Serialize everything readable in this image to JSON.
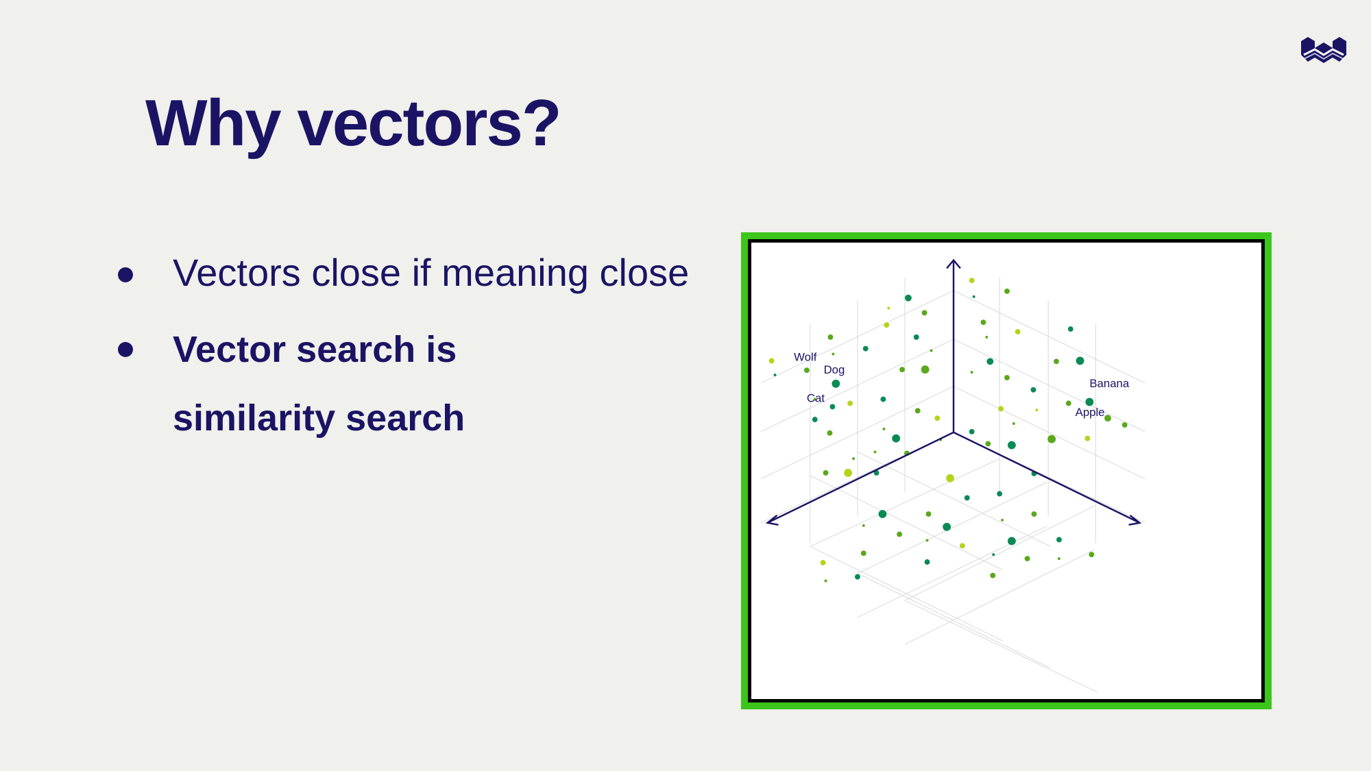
{
  "slide": {
    "title": "Why vectors?",
    "bullets": [
      {
        "text": "Vectors close if meaning close"
      },
      {
        "lines": [
          "Vector search is",
          "similarity search"
        ]
      }
    ]
  },
  "logo": {
    "icon": "weaviate-w-logo-icon",
    "color": "#1b1464"
  },
  "figure": {
    "frame_color": "#3cc51a",
    "axis_color": "#1b1464",
    "point_colors": [
      "#0a8a55",
      "#5aa81c",
      "#b4d41c"
    ],
    "labels": {
      "wolf": "Wolf",
      "dog": "Dog",
      "cat": "Cat",
      "banana": "Banana",
      "apple": "Apple"
    }
  }
}
